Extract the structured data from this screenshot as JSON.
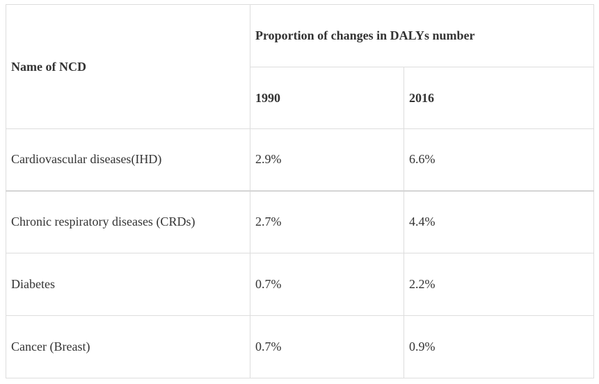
{
  "table": {
    "header": {
      "name_col": "Name of NCD",
      "group": "Proportion of changes in DALYs number",
      "years": [
        "1990",
        "2016"
      ]
    },
    "rows": [
      {
        "name": "Cardiovascular diseases(IHD)",
        "v1990": "2.9%",
        "v2016": "6.6%"
      },
      {
        "name": "Chronic respiratory diseases (CRDs)",
        "v1990": "2.7%",
        "v2016": "4.4%"
      },
      {
        "name": "Diabetes",
        "v1990": "0.7%",
        "v2016": "2.2%"
      },
      {
        "name": "Cancer (Breast)",
        "v1990": "0.7%",
        "v2016": "0.9%"
      }
    ]
  }
}
